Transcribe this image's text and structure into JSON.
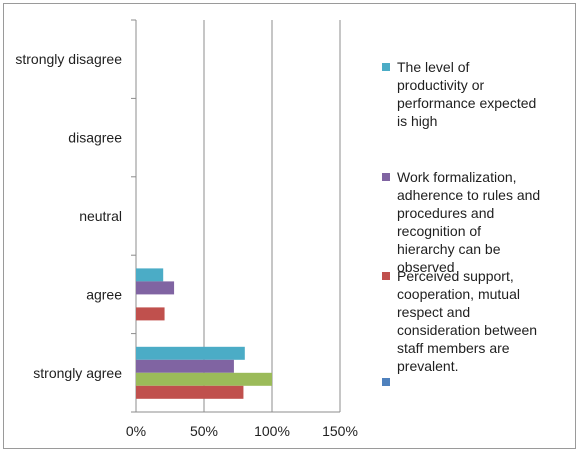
{
  "chart_data": {
    "type": "bar",
    "orientation": "horizontal",
    "categories": [
      "strongly disagree",
      "disagree",
      "neutral",
      "agree",
      "strongly agree"
    ],
    "x_ticks": [
      "0%",
      "50%",
      "100%",
      "150%"
    ],
    "xlim": [
      0,
      150
    ],
    "grid": true,
    "legend_position": "right",
    "series": [
      {
        "name": "The level of productivity or performance expected is high",
        "color": "#4bacc6",
        "values": [
          0,
          0,
          0,
          20,
          80
        ]
      },
      {
        "name": "Work formalization, adherence to rules and procedures and recognition of hierarchy can be observed",
        "color": "#8064a2",
        "values": [
          0,
          0,
          0,
          28,
          72
        ]
      },
      {
        "name": "",
        "color": "#9bbb59",
        "values": [
          0,
          0,
          0,
          0,
          100
        ]
      },
      {
        "name": "Perceived support, cooperation, mutual respect and consideration between staff members are prevalent.",
        "color": "#c0504d",
        "values": [
          0,
          0,
          0,
          21,
          79
        ]
      }
    ],
    "legend": [
      {
        "label": "The level of productivity or performance expected is high",
        "color": "#4bacc6"
      },
      {
        "label": "Work formalization, adherence to rules and procedures and recognition of hierarchy can be observed",
        "color": "#8064a2"
      },
      {
        "label": "Perceived support, cooperation, mutual respect and consideration between staff members are prevalent.",
        "color": "#c0504d"
      },
      {
        "label": "",
        "color": "#4f81bd"
      }
    ]
  }
}
